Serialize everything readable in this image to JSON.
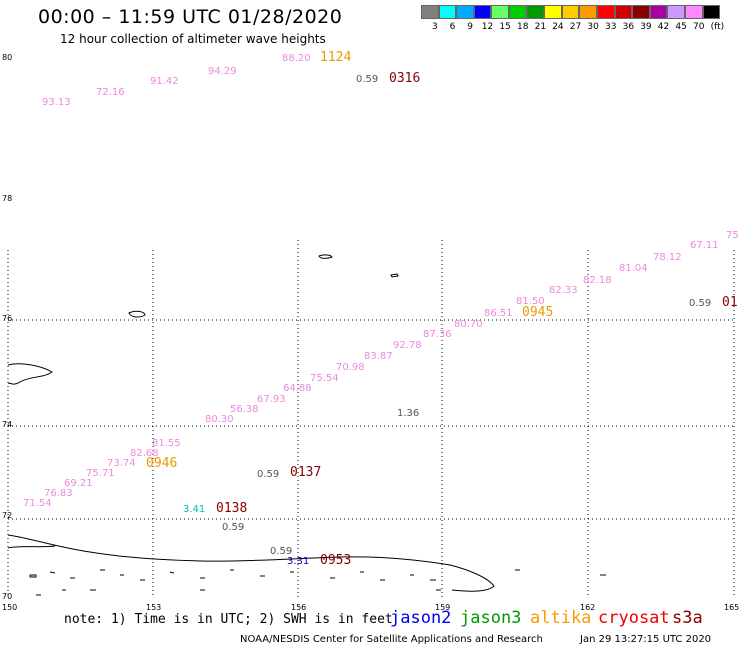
{
  "header": {
    "title": "00:00 – 11:59 UTC 01/28/2020",
    "subtitle": "12 hour collection of altimeter wave heights"
  },
  "legend": {
    "colors": [
      "#808080",
      "#00ffff",
      "#00aaff",
      "#0000ff",
      "#66ff66",
      "#00cc00",
      "#009900",
      "#ffff00",
      "#ffcc00",
      "#ff9900",
      "#ff0000",
      "#cc0000",
      "#880000",
      "#aa00aa",
      "#cc99ff",
      "#ff88ff",
      "#000000"
    ],
    "labels": [
      "3",
      "6",
      "9",
      "12",
      "15",
      "18",
      "21",
      "24",
      "27",
      "30",
      "33",
      "36",
      "39",
      "42",
      "45",
      "70",
      "(ft)"
    ]
  },
  "axes": {
    "lon_labels": [
      "150",
      "153",
      "156",
      "159",
      "162",
      "165"
    ],
    "lat_labels": [
      "80",
      "78",
      "76",
      "74",
      "72",
      "70"
    ]
  },
  "observations": [
    {
      "text": "93.13",
      "color": "#ee88dd"
    },
    {
      "text": "72.16",
      "color": "#ee88dd"
    },
    {
      "text": "91.42",
      "color": "#ee88dd"
    },
    {
      "text": "94.29",
      "color": "#ee88dd"
    },
    {
      "text": "88.20",
      "color": "#ee88dd"
    },
    {
      "text": "1124",
      "color": "#ee9900"
    },
    {
      "text": "0.59",
      "color": "#555555"
    },
    {
      "text": "0316",
      "color": "#880000"
    },
    {
      "text": "75",
      "color": "#ee88dd"
    },
    {
      "text": "67.11",
      "color": "#ee88dd"
    },
    {
      "text": "78.12",
      "color": "#ee88dd"
    },
    {
      "text": "81.04",
      "color": "#ee88dd"
    },
    {
      "text": "82.18",
      "color": "#ee88dd"
    },
    {
      "text": "82.33",
      "color": "#ee88dd"
    },
    {
      "text": "81.50",
      "color": "#ee88dd"
    },
    {
      "text": "86.51",
      "color": "#ee88dd"
    },
    {
      "text": "0945",
      "color": "#ee9900"
    },
    {
      "text": "0.59",
      "color": "#555555"
    },
    {
      "text": "01",
      "color": "#880000"
    },
    {
      "text": "80.70",
      "color": "#ee88dd"
    },
    {
      "text": "87.36",
      "color": "#ee88dd"
    },
    {
      "text": "92.78",
      "color": "#ee88dd"
    },
    {
      "text": "83.87",
      "color": "#ee88dd"
    },
    {
      "text": "70.98",
      "color": "#ee88dd"
    },
    {
      "text": "75.54",
      "color": "#ee88dd"
    },
    {
      "text": "64.88",
      "color": "#ee88dd"
    },
    {
      "text": "67.93",
      "color": "#ee88dd"
    },
    {
      "text": "56.38",
      "color": "#ee88dd"
    },
    {
      "text": "80.30",
      "color": "#ee88dd"
    },
    {
      "text": "1.36",
      "color": "#555555"
    },
    {
      "text": "81.55",
      "color": "#ee88dd"
    },
    {
      "text": "82.68",
      "color": "#ee88dd"
    },
    {
      "text": "73.74",
      "color": "#ee88dd"
    },
    {
      "text": "0946",
      "color": "#ee9900"
    },
    {
      "text": "75.71",
      "color": "#ee88dd"
    },
    {
      "text": "69.21",
      "color": "#ee88dd"
    },
    {
      "text": "76.83",
      "color": "#ee88dd"
    },
    {
      "text": "71.54",
      "color": "#ee88dd"
    },
    {
      "text": "0.59",
      "color": "#555555"
    },
    {
      "text": "0137",
      "color": "#880000"
    },
    {
      "text": "3.41",
      "color": "#00bbbb"
    },
    {
      "text": "0138",
      "color": "#880000"
    },
    {
      "text": "0.59",
      "color": "#555555"
    },
    {
      "text": "0.59",
      "color": "#555555"
    },
    {
      "text": "3.31",
      "color": "#0000cc"
    },
    {
      "text": "0953",
      "color": "#880000"
    }
  ],
  "note": "note: 1) Time is in UTC; 2) SWH is in feet",
  "satellites": [
    {
      "name": "jason2",
      "color": "#0000ee"
    },
    {
      "name": "jason3",
      "color": "#009900"
    },
    {
      "name": "altika",
      "color": "#ff9900"
    },
    {
      "name": "cryosat",
      "color": "#ee0000"
    },
    {
      "name": "s3a",
      "color": "#880000"
    }
  ],
  "footer": {
    "credit": "NOAA/NESDIS Center for Satellite Applications and Research",
    "timestamp": "Jan 29 13:27:15 UTC 2020"
  }
}
